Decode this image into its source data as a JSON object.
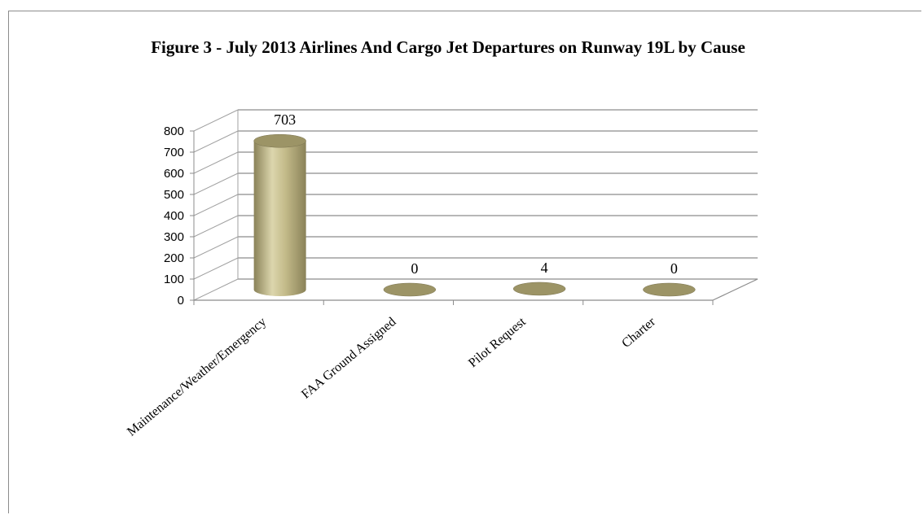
{
  "chart_data": {
    "type": "bar",
    "title": "Figure 3 - July 2013 Airlines And Cargo Jet Departures on Runway 19L by Cause",
    "categories": [
      "Maintenance/Weather/Emergency",
      "FAA Ground Assigned",
      "Pilot Request",
      "Charter"
    ],
    "values": [
      703,
      0,
      4,
      0
    ],
    "data_labels": [
      "703",
      "0",
      "4",
      "0"
    ],
    "ylim": [
      0,
      800
    ],
    "yticks": [
      0,
      100,
      200,
      300,
      400,
      500,
      600,
      700,
      800
    ],
    "grid": true,
    "style": "3d-cylinder",
    "colors": {
      "bar": "#b9b07c",
      "bar_dark": "#8a8258",
      "bar_light": "#dcd6ad",
      "top": "#9c9466",
      "grid": "#8c8c8c"
    }
  }
}
